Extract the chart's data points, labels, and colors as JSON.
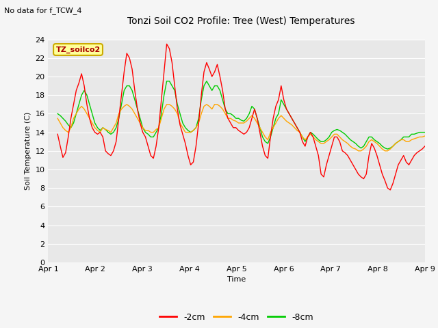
{
  "title": "Tonzi Soil CO2 Profile: Tree (West) Temperatures",
  "subtitle": "No data for f_TCW_4",
  "ylabel": "Soil Temperature (C)",
  "xlabel": "Time",
  "legend_label": "TZ_soilco2",
  "ylim": [
    0,
    24
  ],
  "xlim": [
    0,
    8
  ],
  "xtick_labels": [
    "Apr 1",
    "Apr 2",
    "Apr 3",
    "Apr 4",
    "Apr 5",
    "Apr 6",
    "Apr 7",
    "Apr 8",
    "Apr 9"
  ],
  "ytick_values": [
    0,
    2,
    4,
    6,
    8,
    10,
    12,
    14,
    16,
    18,
    20,
    22,
    24
  ],
  "bg_color": "#e8e8e8",
  "fig_bg_color": "#f5f5f5",
  "line_colors": {
    "m2cm": "#ff0000",
    "m4cm": "#ffa500",
    "m8cm": "#00cc00"
  },
  "series_m2cm": [
    13.8,
    12.5,
    11.3,
    11.8,
    13.5,
    15.5,
    17.0,
    18.5,
    19.3,
    20.3,
    19.0,
    17.0,
    15.5,
    14.5,
    14.0,
    13.8,
    14.0,
    13.5,
    12.0,
    11.7,
    11.5,
    12.0,
    13.0,
    15.5,
    18.0,
    20.5,
    22.5,
    22.0,
    20.8,
    18.5,
    16.5,
    15.0,
    14.0,
    13.5,
    12.5,
    11.5,
    11.2,
    12.5,
    14.5,
    17.5,
    20.5,
    23.5,
    23.0,
    21.5,
    19.0,
    16.5,
    14.8,
    13.8,
    12.8,
    11.5,
    10.5,
    10.8,
    12.5,
    15.0,
    18.0,
    20.5,
    21.5,
    20.8,
    20.0,
    20.5,
    21.3,
    20.0,
    18.5,
    16.5,
    15.5,
    15.0,
    14.5,
    14.5,
    14.2,
    14.0,
    13.8,
    14.0,
    14.5,
    15.5,
    16.5,
    15.5,
    14.0,
    12.5,
    11.5,
    11.2,
    13.5,
    15.5,
    16.8,
    17.5,
    19.0,
    17.5,
    16.5,
    16.0,
    15.5,
    15.0,
    14.5,
    14.0,
    13.0,
    12.5,
    13.5,
    14.0,
    13.5,
    12.5,
    11.5,
    9.5,
    9.2,
    10.5,
    11.5,
    12.5,
    13.5,
    13.5,
    13.0,
    12.0,
    11.8,
    11.5,
    11.0,
    10.5,
    10.0,
    9.5,
    9.2,
    9.0,
    9.5,
    11.5,
    12.8,
    12.3,
    11.5,
    10.5,
    9.5,
    8.8,
    8.0,
    7.8,
    8.5,
    9.5,
    10.5,
    11.0,
    11.5,
    10.8,
    10.5,
    11.0,
    11.5,
    11.8,
    12.0,
    12.2,
    12.5
  ],
  "series_m4cm": [
    15.5,
    15.0,
    14.5,
    14.2,
    14.0,
    14.5,
    15.5,
    16.0,
    16.5,
    16.8,
    16.5,
    16.0,
    15.5,
    15.0,
    14.5,
    14.2,
    14.0,
    14.5,
    14.3,
    14.2,
    14.0,
    14.5,
    15.0,
    16.0,
    16.5,
    16.8,
    17.0,
    16.8,
    16.5,
    16.0,
    15.5,
    15.0,
    14.5,
    14.2,
    14.2,
    14.0,
    14.0,
    14.3,
    14.5,
    15.5,
    16.5,
    17.0,
    17.0,
    16.8,
    16.5,
    16.0,
    15.0,
    14.5,
    14.0,
    14.0,
    14.0,
    14.2,
    14.5,
    15.0,
    16.0,
    16.8,
    17.0,
    16.8,
    16.5,
    17.0,
    17.0,
    16.8,
    16.5,
    16.0,
    15.5,
    15.5,
    15.3,
    15.2,
    15.0,
    15.0,
    15.0,
    15.2,
    15.5,
    15.8,
    15.5,
    15.0,
    14.5,
    14.0,
    13.5,
    13.2,
    14.0,
    14.5,
    15.0,
    15.5,
    15.8,
    15.5,
    15.2,
    15.0,
    14.8,
    14.5,
    14.2,
    14.0,
    13.5,
    13.2,
    13.5,
    13.8,
    13.5,
    13.2,
    13.0,
    12.8,
    12.8,
    13.0,
    13.2,
    13.5,
    13.8,
    13.8,
    13.5,
    13.2,
    13.0,
    12.8,
    12.5,
    12.3,
    12.2,
    12.0,
    12.0,
    12.2,
    12.5,
    13.0,
    13.2,
    13.0,
    12.8,
    12.5,
    12.2,
    12.0,
    12.0,
    12.2,
    12.5,
    12.8,
    13.0,
    13.2,
    13.2,
    13.0,
    13.0,
    13.2,
    13.3,
    13.4,
    13.5,
    13.5,
    13.6
  ],
  "series_m8cm": [
    16.0,
    15.8,
    15.5,
    15.2,
    14.8,
    14.5,
    15.0,
    16.0,
    17.0,
    18.0,
    18.5,
    18.0,
    17.0,
    16.0,
    15.0,
    14.5,
    14.2,
    14.5,
    14.3,
    14.0,
    13.8,
    14.0,
    14.5,
    15.5,
    17.0,
    18.5,
    19.0,
    19.0,
    18.5,
    17.5,
    16.5,
    15.5,
    14.5,
    14.0,
    13.8,
    13.5,
    13.5,
    14.0,
    14.5,
    16.0,
    18.0,
    19.5,
    19.5,
    19.0,
    18.5,
    17.0,
    16.0,
    15.0,
    14.5,
    14.2,
    14.0,
    14.2,
    14.5,
    15.5,
    17.5,
    19.0,
    19.5,
    19.0,
    18.5,
    19.0,
    19.0,
    18.5,
    17.5,
    16.5,
    16.0,
    16.0,
    15.8,
    15.5,
    15.5,
    15.3,
    15.2,
    15.5,
    16.0,
    16.8,
    16.5,
    15.5,
    14.5,
    13.5,
    13.0,
    12.8,
    13.5,
    14.5,
    15.5,
    16.0,
    17.5,
    17.0,
    16.5,
    16.0,
    15.5,
    15.0,
    14.5,
    14.0,
    13.5,
    13.0,
    13.5,
    14.0,
    13.8,
    13.5,
    13.2,
    13.0,
    13.0,
    13.2,
    13.5,
    14.0,
    14.2,
    14.3,
    14.2,
    14.0,
    13.8,
    13.5,
    13.2,
    13.0,
    12.8,
    12.5,
    12.3,
    12.5,
    13.0,
    13.5,
    13.5,
    13.2,
    13.0,
    12.8,
    12.5,
    12.3,
    12.2,
    12.3,
    12.5,
    12.8,
    13.0,
    13.2,
    13.5,
    13.5,
    13.5,
    13.8,
    13.8,
    13.9,
    14.0,
    14.0,
    14.0
  ]
}
